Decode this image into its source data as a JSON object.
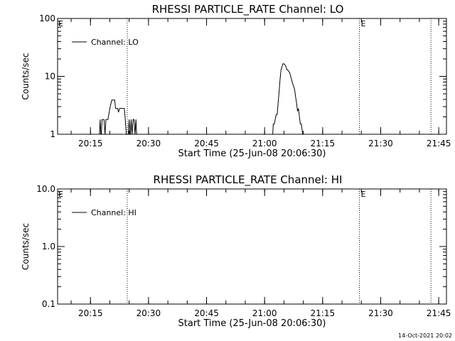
{
  "chart_data": [
    {
      "type": "line",
      "title": "RHESSI PARTICLE_RATE Channel: LO",
      "xlabel": "Start Time (25-Jun-08 20:06:30)",
      "ylabel": "Counts/sec",
      "y_scale": "log",
      "ylim": [
        1,
        100
      ],
      "y_ticks": [
        1,
        10,
        100
      ],
      "y_tick_labels": [
        "1",
        "10",
        "100"
      ],
      "xlim": [
        "20:06:30",
        "21:47:00"
      ],
      "x_ticks": [
        "20:15",
        "20:30",
        "20:45",
        "21:00",
        "21:15",
        "21:30",
        "21:45"
      ],
      "grid": false,
      "legend": {
        "position": "top-left",
        "entries": [
          "Channel: LO"
        ]
      },
      "markers": [
        {
          "time": "20:24:30",
          "label": "",
          "label_side": "left",
          "label_at": "20:06:30"
        },
        {
          "time": "21:24:30",
          "label": "E",
          "label_side": "right"
        },
        {
          "time": "21:43:00",
          "label": "",
          "label_side": "right"
        }
      ],
      "edge_label": "E",
      "series": [
        {
          "name": "Channel: LO",
          "x": [
            "20:17:15",
            "20:17:30",
            "20:17:45",
            "20:18:00",
            "20:18:15",
            "20:18:30",
            "20:18:45",
            "20:19:00",
            "20:19:15",
            "20:19:30",
            "20:20:00",
            "20:20:30",
            "20:21:00",
            "20:21:15",
            "20:21:30",
            "20:21:45",
            "20:22:00",
            "20:22:15",
            "20:22:30",
            "20:22:45",
            "20:23:00",
            "20:23:15",
            "20:23:30",
            "20:23:45",
            "20:24:00",
            "20:24:15",
            "20:24:30",
            "20:24:45",
            "20:25:00",
            "20:25:15",
            "20:25:30",
            "20:25:45",
            "20:26:00",
            "20:26:15",
            "20:26:30",
            "20:26:45",
            "20:27:00",
            "21:02:00",
            "21:02:15",
            "21:02:30",
            "21:03:00",
            "21:03:15",
            "21:03:45",
            "21:04:00",
            "21:04:15",
            "21:04:45",
            "21:05:00",
            "21:05:30",
            "21:05:45",
            "21:06:00",
            "21:06:30",
            "21:06:45",
            "21:07:15",
            "21:07:45",
            "21:08:00",
            "21:08:15",
            "21:08:30",
            "21:08:45",
            "21:09:00",
            "21:09:15",
            "21:09:30",
            "21:10:00"
          ],
          "y": [
            0.8,
            1.8,
            0.8,
            1.8,
            1.8,
            1.8,
            1.0,
            1.8,
            1.8,
            1.8,
            2.8,
            3.9,
            3.9,
            3.9,
            2.8,
            2.8,
            2.8,
            2.4,
            2.8,
            2.8,
            2.8,
            2.8,
            2.8,
            2.8,
            1.8,
            1.0,
            0.8,
            1.0,
            1.8,
            0.8,
            1.8,
            1.0,
            1.8,
            1.8,
            1.0,
            1.8,
            0.8,
            0.8,
            1.5,
            1.5,
            2.2,
            2.2,
            5.5,
            9,
            13,
            16.5,
            16.5,
            15,
            13,
            13,
            11.5,
            10,
            7.5,
            6,
            4.5,
            3.5,
            2.5,
            2.8,
            2,
            1.5,
            1.5,
            0.8
          ]
        }
      ]
    },
    {
      "type": "line",
      "title": "RHESSI PARTICLE_RATE Channel: HI",
      "xlabel": "Start Time (25-Jun-08 20:06:30)",
      "ylabel": "Counts/sec",
      "y_scale": "log",
      "ylim": [
        0.1,
        10
      ],
      "y_ticks": [
        0.1,
        1,
        10
      ],
      "y_tick_labels": [
        "0.1",
        "1.0",
        "10.0"
      ],
      "xlim": [
        "20:06:30",
        "21:47:00"
      ],
      "x_ticks": [
        "20:15",
        "20:30",
        "20:45",
        "21:00",
        "21:15",
        "21:30",
        "21:45"
      ],
      "grid": false,
      "legend": {
        "position": "top-left",
        "entries": [
          "Channel: HI"
        ]
      },
      "markers": [
        {
          "time": "20:24:30",
          "label": "",
          "label_side": "left"
        },
        {
          "time": "21:24:30",
          "label": "E",
          "label_side": "right"
        },
        {
          "time": "21:43:00",
          "label": "",
          "label_side": "right"
        }
      ],
      "edge_label": "E",
      "series": [
        {
          "name": "Channel: HI",
          "x": [],
          "y": []
        }
      ]
    }
  ],
  "footer": {
    "timestamp": "14-Oct-2021 20:02"
  }
}
